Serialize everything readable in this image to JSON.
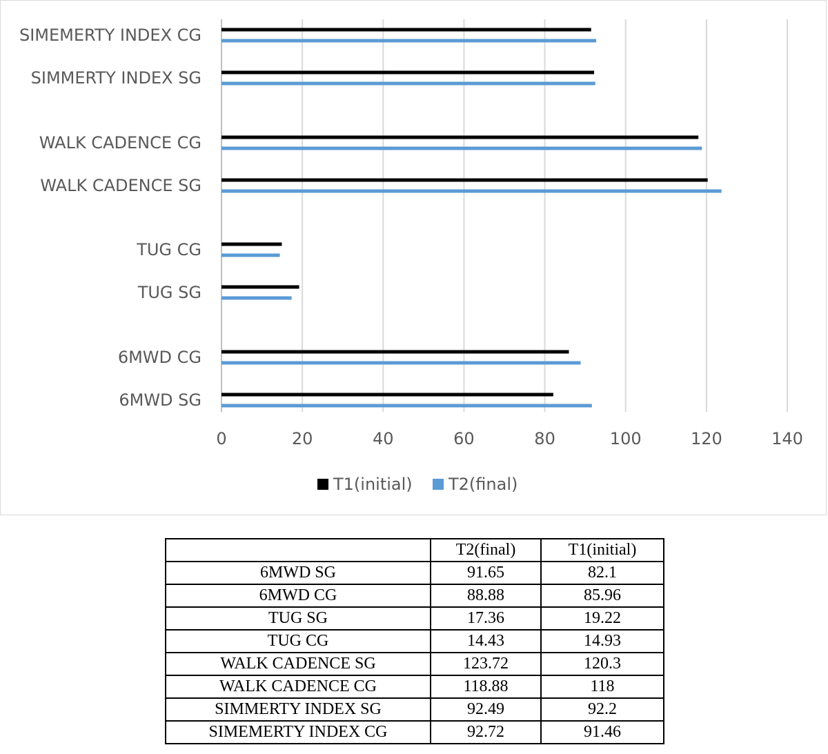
{
  "chart_data": {
    "type": "bar",
    "orientation": "horizontal",
    "categories": [
      "6MWD SG",
      "6MWD CG",
      "TUG SG",
      "TUG CG",
      "WALK CADENCE SG",
      "WALK CADENCE CG",
      "SIMMERTY INDEX SG",
      "SIMEMERTY INDEX CG"
    ],
    "series": [
      {
        "name": "T1(initial)",
        "color": "#000000",
        "values": [
          82.1,
          85.96,
          19.22,
          14.93,
          120.3,
          118,
          92.2,
          91.46
        ]
      },
      {
        "name": "T2(final)",
        "color": "#5b9bd5",
        "values": [
          91.65,
          88.88,
          17.36,
          14.43,
          123.72,
          118.88,
          92.49,
          92.72
        ]
      }
    ],
    "xlim": [
      0,
      140
    ],
    "x_ticks": [
      "0",
      "20",
      "40",
      "60",
      "80",
      "100",
      "120",
      "140"
    ],
    "grid": "vertical",
    "legend": "bottom",
    "title": "",
    "xlabel": "",
    "ylabel": ""
  },
  "table": {
    "headers": [
      "",
      "T2(final)",
      "T1(initial)"
    ],
    "rows": [
      [
        "6MWD SG",
        "91.65",
        "82.1"
      ],
      [
        "6MWD CG",
        "88.88",
        "85.96"
      ],
      [
        "TUG SG",
        "17.36",
        "19.22"
      ],
      [
        "TUG CG",
        "14.43",
        "14.93"
      ],
      [
        "WALK CADENCE SG",
        "123.72",
        "120.3"
      ],
      [
        "WALK CADENCE CG",
        "118.88",
        "118"
      ],
      [
        "SIMMERTY INDEX SG",
        "92.49",
        "92.2"
      ],
      [
        "SIMEMERTY INDEX CG",
        "92.72",
        "91.46"
      ]
    ]
  }
}
